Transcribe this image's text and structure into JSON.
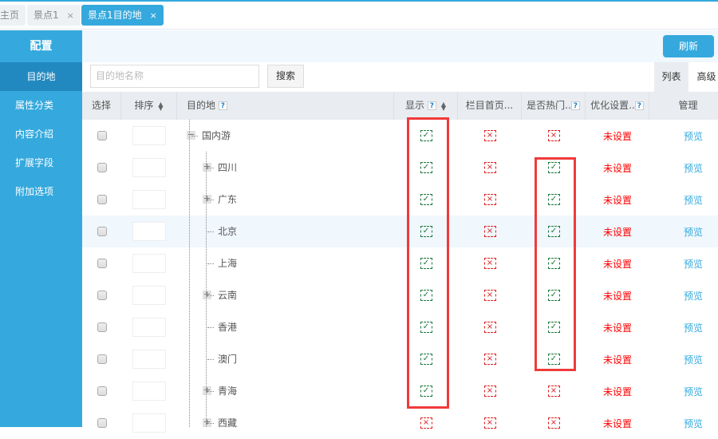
{
  "tabs": [
    {
      "label": "主页",
      "closable": false
    },
    {
      "label": "景点1",
      "closable": true
    },
    {
      "label": "景点1目的地",
      "closable": true,
      "active": true
    }
  ],
  "close_glyph": "×",
  "sidebar": {
    "title": "配置",
    "items": [
      {
        "label": "目的地",
        "active": true
      },
      {
        "label": "属性分类"
      },
      {
        "label": "内容介绍"
      },
      {
        "label": "扩展字段"
      },
      {
        "label": "附加选项"
      }
    ]
  },
  "toolbar": {
    "refresh": "刷新"
  },
  "search": {
    "placeholder": "目的地名称",
    "button": "搜索"
  },
  "view_tabs": [
    "列表",
    "高级"
  ],
  "columns": {
    "select": "选择",
    "order": "排序",
    "dest": "目的地",
    "show": "显示",
    "column_home": "栏目首页...",
    "hot": "是否热门..",
    "seo": "优化设置..",
    "manage": "管理",
    "help": "?"
  },
  "rows": [
    {
      "name": "国内游",
      "level": 0,
      "expand": "−",
      "show": true,
      "column_home": false,
      "hot": false,
      "seo": "未设置",
      "action": "预览"
    },
    {
      "name": "四川",
      "level": 1,
      "expand": "+",
      "show": true,
      "column_home": false,
      "hot": true,
      "seo": "未设置",
      "action": "预览"
    },
    {
      "name": "广东",
      "level": 1,
      "expand": "+",
      "show": true,
      "column_home": false,
      "hot": true,
      "seo": "未设置",
      "action": "预览"
    },
    {
      "name": "北京",
      "level": 1,
      "expand": "",
      "show": true,
      "column_home": false,
      "hot": true,
      "seo": "未设置",
      "action": "预览",
      "highlight": true
    },
    {
      "name": "上海",
      "level": 1,
      "expand": "",
      "show": true,
      "column_home": false,
      "hot": true,
      "seo": "未设置",
      "action": "预览"
    },
    {
      "name": "云南",
      "level": 1,
      "expand": "+",
      "show": true,
      "column_home": false,
      "hot": true,
      "seo": "未设置",
      "action": "预览"
    },
    {
      "name": "香港",
      "level": 1,
      "expand": "",
      "show": true,
      "column_home": false,
      "hot": true,
      "seo": "未设置",
      "action": "预览"
    },
    {
      "name": "澳门",
      "level": 1,
      "expand": "",
      "show": true,
      "column_home": false,
      "hot": true,
      "seo": "未设置",
      "action": "预览"
    },
    {
      "name": "青海",
      "level": 1,
      "expand": "+",
      "show": true,
      "column_home": false,
      "hot": false,
      "seo": "未设置",
      "action": "预览"
    },
    {
      "name": "西藏",
      "level": 1,
      "expand": "+",
      "show": false,
      "column_home": false,
      "hot": false,
      "seo": "未设置",
      "action": "预览"
    }
  ],
  "colors": {
    "accent": "#35a9dd",
    "sidebar_active": "#2289c0",
    "check": "#1a7a3a",
    "cross": "#e02020",
    "annotation": "#f03a3a"
  }
}
